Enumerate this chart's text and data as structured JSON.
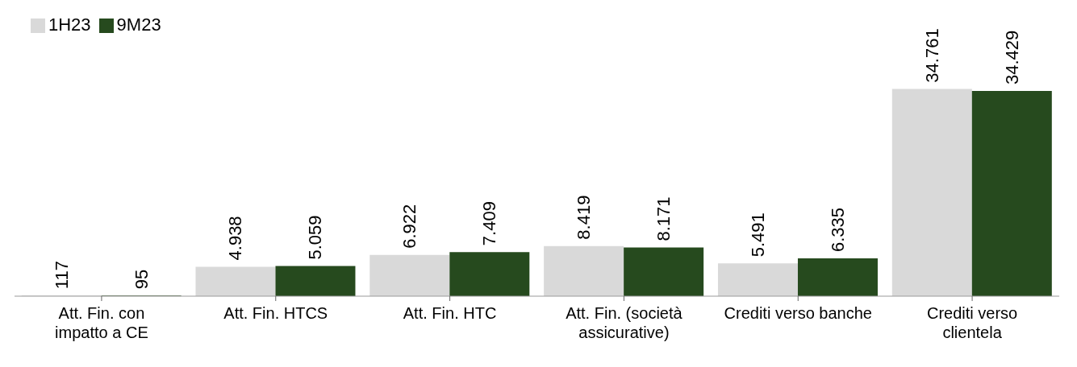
{
  "chart_data": {
    "type": "bar",
    "categories": [
      "Att. Fin. con impatto a CE",
      "Att. Fin. HTCS",
      "Att. Fin. HTC",
      "Att. Fin. (società assicurative)",
      "Crediti verso banche",
      "Crediti verso clientela"
    ],
    "series": [
      {
        "name": "1H23",
        "color": "#d9d9d9",
        "values": [
          117,
          4938,
          6922,
          8419,
          5491,
          34761
        ],
        "value_labels": [
          "117",
          "4.938",
          "6.922",
          "8.419",
          "5.491",
          "34.761"
        ]
      },
      {
        "name": "9M23",
        "color": "#264a1e",
        "values": [
          95,
          5059,
          7409,
          8171,
          6335,
          34429
        ],
        "value_labels": [
          "95",
          "5.059",
          "7.409",
          "8.171",
          "6.335",
          "34.429"
        ]
      }
    ],
    "legend": "top left"
  }
}
